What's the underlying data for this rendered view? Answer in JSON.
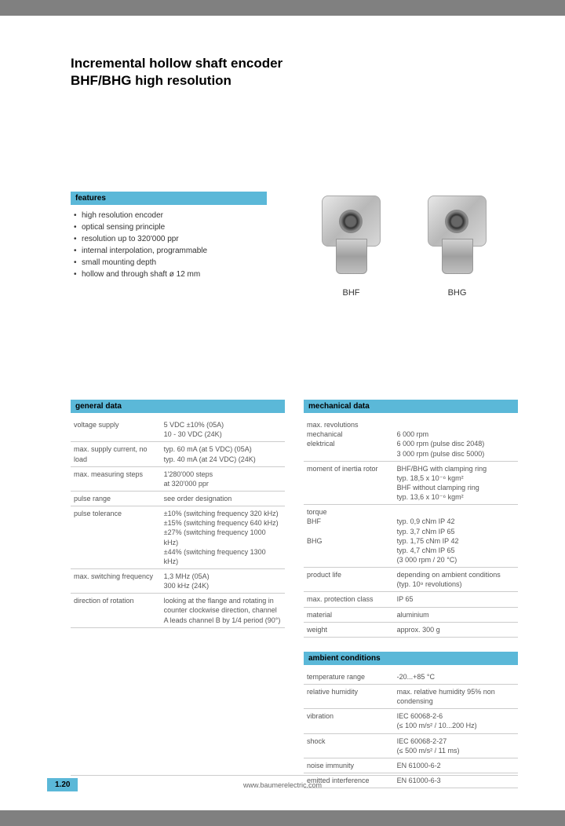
{
  "title_line1": "Incremental hollow shaft encoder",
  "title_line2": "BHF/BHG high resolution",
  "features_header": "features",
  "features": [
    "high resolution encoder",
    "optical sensing principle",
    "resolution up to 320'000 ppr",
    "internal interpolation, programmable",
    "small mounting depth",
    "hollow and through shaft ø 12 mm"
  ],
  "product_labels": [
    "BHF",
    "BHG"
  ],
  "general_header": "general data",
  "general_rows": [
    {
      "l": "voltage supply",
      "r": "5 VDC ±10% (05A)\n10 - 30 VDC (24K)"
    },
    {
      "l": "max. supply current, no load",
      "r": "typ. 60 mA (at 5 VDC) (05A)\ntyp. 40 mA (at 24 VDC) (24K)"
    },
    {
      "l": "max. measuring steps",
      "r": "1'280'000 steps\nat 320'000 ppr"
    },
    {
      "l": "pulse range",
      "r": "see order designation"
    },
    {
      "l": "pulse tolerance",
      "r": "±10% (switching frequency 320 kHz)\n±15% (switching frequency 640 kHz)\n±27% (switching frequency 1000 kHz)\n±44% (switching frequency 1300 kHz)"
    },
    {
      "l": "max. switching frequency",
      "r": "1,3 MHz (05A)\n300 kHz (24K)"
    },
    {
      "l": "direction of rotation",
      "r": "looking at the flange and rotating in counter clockwise direction, channel A leads channel B by 1/4 period (90°)"
    }
  ],
  "mechanical_header": "mechanical data",
  "mechanical_rows": [
    {
      "l": "max. revolutions\nmechanical\nelektrical",
      "r": "\n6 000 rpm\n6 000 rpm (pulse disc 2048)\n3 000 rpm (pulse disc 5000)"
    },
    {
      "l": "moment of inertia rotor",
      "r": "BHF/BHG with clamping ring\ntyp. 18,5 x 10⁻⁶ kgm²\nBHF without clamping ring\ntyp. 13,6 x 10⁻⁶ kgm²"
    },
    {
      "l": "torque\nBHF\n\nBHG",
      "r": "\ntyp. 0,9 cNm IP 42\ntyp. 3,7 cNm IP 65\ntyp. 1,75 cNm IP 42\ntyp. 4,7 cNm IP 65\n(3 000 rpm / 20 °C)"
    },
    {
      "l": "product life",
      "r": "depending on ambient conditions (typ. 10⁹ revolutions)"
    },
    {
      "l": "max. protection class",
      "r": "IP 65"
    },
    {
      "l": "material",
      "r": "aluminium"
    },
    {
      "l": "weight",
      "r": "approx. 300 g"
    }
  ],
  "ambient_header": "ambient conditions",
  "ambient_rows": [
    {
      "l": "temperature range",
      "r": "-20...+85 °C"
    },
    {
      "l": "relative humidity",
      "r": "max. relative humidity 95% non condensing"
    },
    {
      "l": "vibration",
      "r": "IEC 60068-2-6\n(≤ 100 m/s² / 10...200 Hz)"
    },
    {
      "l": "shock",
      "r": "IEC 60068-2-27\n(≤ 500 m/s² / 11 ms)"
    },
    {
      "l": "noise immunity",
      "r": "EN 61000-6-2"
    },
    {
      "l": "emitted interference",
      "r": "EN 61000-6-3"
    }
  ],
  "page_number": "1.20",
  "footer_url": "www.baumerelectric.com",
  "colors": {
    "header_bg": "#5bb8d8",
    "page_bg": "#ffffff",
    "body_bg": "#808080",
    "rule": "#cccccc"
  }
}
